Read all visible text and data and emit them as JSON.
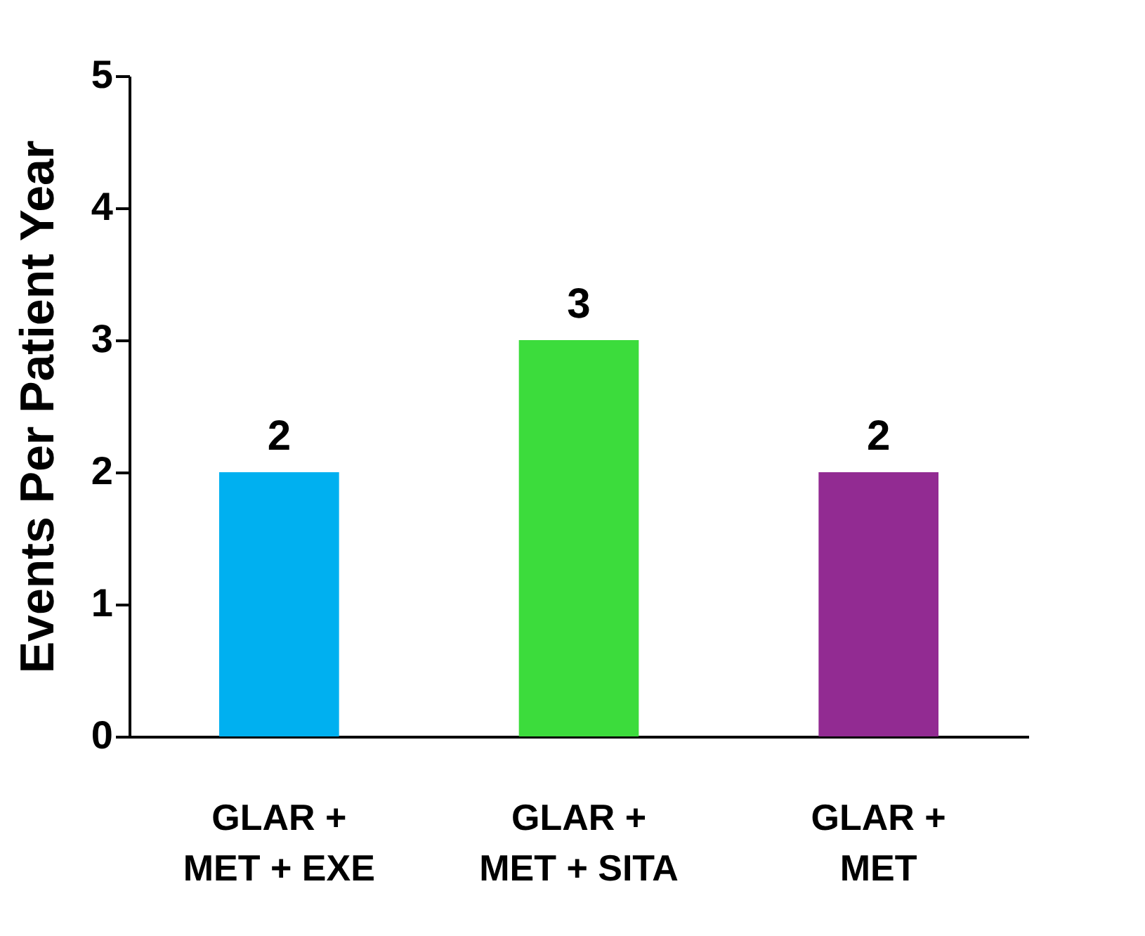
{
  "chart_data": {
    "type": "bar",
    "ylabel": "Events Per Patient Year",
    "categories": [
      "GLAR +\nMET + EXE",
      "GLAR +\nMET + SITA",
      "GLAR +\nMET"
    ],
    "values": [
      2,
      3,
      2
    ],
    "colors": [
      "#00b0f0",
      "#3cdc3c",
      "#922b92"
    ],
    "ylim": [
      0,
      5
    ],
    "yticks": [
      0,
      1,
      2,
      3,
      4,
      5
    ],
    "data_labels": true,
    "grid": false
  }
}
